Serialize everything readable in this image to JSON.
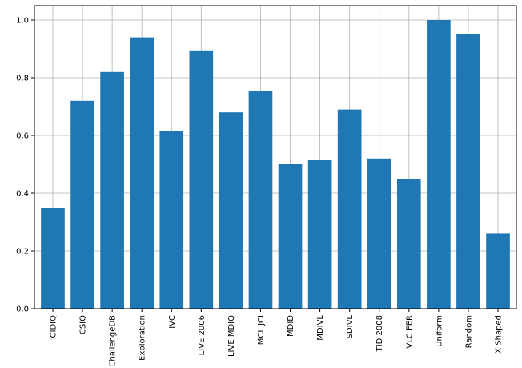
{
  "chart_data": {
    "type": "bar",
    "categories": [
      "CIDIQ",
      "CSIQ",
      "ChallengeDB",
      "Exploration",
      "IVC",
      "LIVE 2006",
      "LIVE MDIQ",
      "MCL JCI",
      "MDID",
      "MDIVL",
      "SDIVL",
      "TID 2008",
      "VLC FER",
      "Uniform",
      "Random",
      "X Shaped"
    ],
    "values": [
      0.35,
      0.72,
      0.82,
      0.94,
      0.615,
      0.895,
      0.68,
      0.755,
      0.5,
      0.515,
      0.69,
      0.52,
      0.45,
      1.0,
      0.95,
      0.26
    ],
    "yticks": [
      "0.0",
      "0.2",
      "0.4",
      "0.6",
      "0.8",
      "1.0"
    ],
    "ylim": [
      0,
      1.05
    ],
    "grid": true,
    "bar_color": "#1f77b4",
    "grid_color": "#b0b0b0"
  }
}
